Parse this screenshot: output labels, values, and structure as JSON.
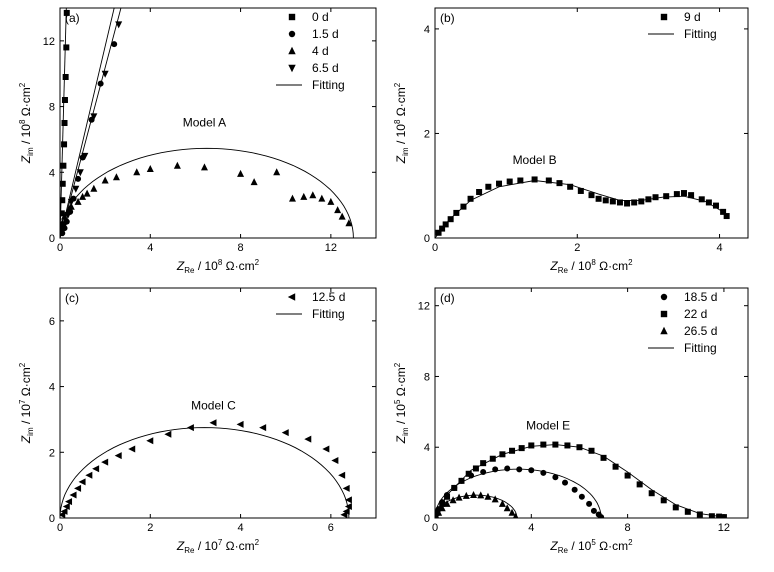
{
  "figure": {
    "unit_label": "Ω·cm",
    "unit_power": "2"
  },
  "chart_data": [
    {
      "panel": "(a)",
      "type": "scatter",
      "model_label": "Model  A",
      "xlabel": {
        "symbol": "Z",
        "sub": "Re",
        "prefix": " / 10",
        "exp": "8"
      },
      "ylabel": {
        "symbol": "Z",
        "sub": "im",
        "prefix": " / 10",
        "exp": "8"
      },
      "xlim": [
        0,
        14
      ],
      "ylim": [
        0,
        14
      ],
      "xticks": [
        0,
        4,
        8,
        12
      ],
      "xtick_labels": [
        "0",
        "4",
        "8",
        "12"
      ],
      "yticks": [
        0,
        4,
        8,
        12
      ],
      "ytick_labels": [
        "0",
        "4",
        "8",
        "12"
      ],
      "legend": [
        "0 d",
        "1.5 d",
        "4 d",
        "6.5 d",
        "Fitting"
      ],
      "series": [
        {
          "name": "0 d",
          "marker": "square",
          "x": [
            0.03,
            0.05,
            0.08,
            0.1,
            0.12,
            0.15,
            0.18,
            0.2,
            0.22,
            0.25,
            0.28,
            0.3
          ],
          "y": [
            0.3,
            0.8,
            1.5,
            2.3,
            3.3,
            4.4,
            5.7,
            7.0,
            8.4,
            9.8,
            11.6,
            13.7
          ]
        },
        {
          "name": "1.5 d",
          "marker": "circle",
          "x": [
            0.1,
            0.2,
            0.3,
            0.45,
            0.6,
            0.8,
            1.0,
            1.4,
            1.8,
            2.4
          ],
          "y": [
            0.3,
            0.6,
            1.0,
            1.6,
            2.4,
            3.6,
            4.9,
            7.2,
            9.4,
            11.8
          ]
        },
        {
          "name": "4 d",
          "marker": "triangle-up",
          "x": [
            0.05,
            0.1,
            0.2,
            0.35,
            0.5,
            0.8,
            1.0,
            1.2,
            1.5,
            2.0,
            2.5,
            3.4,
            4.0,
            5.2,
            6.4,
            8.0,
            8.6,
            9.6,
            10.3,
            10.8,
            11.2,
            11.6,
            12.0,
            12.3,
            12.5,
            12.8
          ],
          "y": [
            0.5,
            0.9,
            1.3,
            1.6,
            1.9,
            2.2,
            2.5,
            2.7,
            3.0,
            3.5,
            3.7,
            4.0,
            4.2,
            4.4,
            4.3,
            3.9,
            3.4,
            4.0,
            2.4,
            2.5,
            2.6,
            2.4,
            2.2,
            1.7,
            1.3,
            0.9
          ]
        },
        {
          "name": "6.5 d",
          "marker": "triangle-down",
          "x": [
            0.1,
            0.2,
            0.35,
            0.5,
            0.7,
            0.9,
            1.1,
            1.5,
            2.0,
            2.6
          ],
          "y": [
            0.4,
            0.8,
            1.4,
            2.2,
            3.0,
            4.0,
            5.0,
            7.4,
            10.0,
            13.0
          ]
        }
      ]
    },
    {
      "panel": "(b)",
      "type": "scatter",
      "model_label": "Model  B",
      "xlabel": {
        "symbol": "Z",
        "sub": "Re",
        "prefix": " / 10",
        "exp": "8"
      },
      "ylabel": {
        "symbol": "Z",
        "sub": "im",
        "prefix": " / 10",
        "exp": "8"
      },
      "xlim": [
        0,
        4.4
      ],
      "ylim": [
        0,
        4.4
      ],
      "xticks": [
        0,
        2,
        4
      ],
      "xtick_labels": [
        "0",
        "2",
        "4"
      ],
      "yticks": [
        0,
        2,
        4
      ],
      "ytick_labels": [
        "0",
        "2",
        "4"
      ],
      "legend": [
        "9 d",
        "Fitting"
      ],
      "series": [
        {
          "name": "9 d",
          "marker": "square",
          "x": [
            0.05,
            0.1,
            0.15,
            0.22,
            0.3,
            0.4,
            0.5,
            0.62,
            0.75,
            0.9,
            1.05,
            1.2,
            1.4,
            1.6,
            1.75,
            1.9,
            2.05,
            2.2,
            2.3,
            2.4,
            2.5,
            2.6,
            2.7,
            2.8,
            2.9,
            3.0,
            3.1,
            3.25,
            3.4,
            3.5,
            3.6,
            3.75,
            3.85,
            3.95,
            4.05,
            4.1
          ],
          "y": [
            0.1,
            0.18,
            0.26,
            0.36,
            0.48,
            0.6,
            0.75,
            0.88,
            0.98,
            1.04,
            1.08,
            1.1,
            1.12,
            1.1,
            1.05,
            0.98,
            0.9,
            0.82,
            0.75,
            0.72,
            0.7,
            0.68,
            0.66,
            0.68,
            0.7,
            0.74,
            0.78,
            0.8,
            0.84,
            0.86,
            0.82,
            0.74,
            0.68,
            0.62,
            0.5,
            0.42
          ]
        }
      ]
    },
    {
      "panel": "(c)",
      "type": "scatter",
      "model_label": "Model  C",
      "xlabel": {
        "symbol": "Z",
        "sub": "Re",
        "prefix": " / 10",
        "exp": "7"
      },
      "ylabel": {
        "symbol": "Z",
        "sub": "im",
        "prefix": " / 10",
        "exp": "7"
      },
      "xlim": [
        0,
        7
      ],
      "ylim": [
        0,
        7
      ],
      "xticks": [
        0,
        2,
        4,
        6
      ],
      "xtick_labels": [
        "0",
        "2",
        "4",
        "6"
      ],
      "yticks": [
        0,
        2,
        4,
        6
      ],
      "ytick_labels": [
        "0",
        "2",
        "4",
        "6"
      ],
      "legend": [
        "12.5 d",
        "Fitting"
      ],
      "series": [
        {
          "name": "12.5 d",
          "marker": "triangle-left",
          "x": [
            0.05,
            0.1,
            0.15,
            0.2,
            0.3,
            0.4,
            0.5,
            0.65,
            0.8,
            1.0,
            1.3,
            1.6,
            2.0,
            2.4,
            2.9,
            3.4,
            4.0,
            4.5,
            5.0,
            5.5,
            5.9,
            6.1,
            6.25,
            6.35,
            6.4,
            6.4,
            6.35,
            6.3
          ],
          "y": [
            0.1,
            0.2,
            0.35,
            0.5,
            0.7,
            0.9,
            1.1,
            1.3,
            1.5,
            1.7,
            1.9,
            2.1,
            2.35,
            2.55,
            2.75,
            2.9,
            2.85,
            2.75,
            2.6,
            2.4,
            2.1,
            1.75,
            1.3,
            0.9,
            0.55,
            0.35,
            0.2,
            0.1
          ]
        }
      ]
    },
    {
      "panel": "(d)",
      "type": "scatter",
      "model_label": "Model  E",
      "xlabel": {
        "symbol": "Z",
        "sub": "Re",
        "prefix": " / 10",
        "exp": "5"
      },
      "ylabel": {
        "symbol": "Z",
        "sub": "im",
        "prefix": " / 10",
        "exp": "5"
      },
      "xlim": [
        0,
        13
      ],
      "ylim": [
        0,
        13
      ],
      "xticks": [
        0,
        4,
        8,
        12
      ],
      "xtick_labels": [
        "0",
        "4",
        "8",
        "12"
      ],
      "yticks": [
        0,
        4,
        8,
        12
      ],
      "ytick_labels": [
        "0",
        "4",
        "8",
        "12"
      ],
      "legend": [
        "18.5 d",
        "22 d",
        "26.5 d",
        "Fitting"
      ],
      "series": [
        {
          "name": "18.5 d",
          "marker": "circle",
          "x": [
            0.05,
            0.15,
            0.3,
            0.5,
            0.8,
            1.1,
            1.5,
            2.0,
            2.5,
            3.0,
            3.5,
            4.0,
            4.5,
            5.0,
            5.4,
            5.8,
            6.1,
            6.4,
            6.6,
            6.8,
            6.9
          ],
          "y": [
            0.2,
            0.5,
            0.9,
            1.3,
            1.7,
            2.1,
            2.4,
            2.6,
            2.75,
            2.8,
            2.75,
            2.7,
            2.55,
            2.3,
            2.0,
            1.6,
            1.2,
            0.8,
            0.4,
            0.2,
            0.05
          ]
        },
        {
          "name": "22 d",
          "marker": "square",
          "x": [
            0.1,
            0.3,
            0.5,
            0.8,
            1.1,
            1.4,
            1.7,
            2.0,
            2.4,
            2.8,
            3.2,
            3.6,
            4.0,
            4.5,
            5.0,
            5.5,
            6.0,
            6.5,
            7.0,
            7.5,
            8.0,
            8.5,
            9.0,
            9.5,
            10.0,
            10.5,
            11.0,
            11.5,
            11.8,
            12.0
          ],
          "y": [
            0.3,
            0.8,
            1.2,
            1.7,
            2.1,
            2.5,
            2.8,
            3.1,
            3.35,
            3.6,
            3.8,
            3.95,
            4.1,
            4.15,
            4.15,
            4.1,
            4.0,
            3.8,
            3.4,
            2.9,
            2.4,
            1.9,
            1.4,
            1.0,
            0.6,
            0.35,
            0.2,
            0.1,
            0.08,
            0.05
          ]
        },
        {
          "name": "26.5 d",
          "marker": "triangle-up",
          "x": [
            0.05,
            0.15,
            0.3,
            0.5,
            0.75,
            1.0,
            1.3,
            1.6,
            1.9,
            2.2,
            2.5,
            2.8,
            3.0,
            3.2,
            3.35
          ],
          "y": [
            0.1,
            0.3,
            0.55,
            0.8,
            1.0,
            1.15,
            1.25,
            1.3,
            1.28,
            1.2,
            1.05,
            0.8,
            0.55,
            0.3,
            0.08
          ]
        }
      ]
    }
  ]
}
